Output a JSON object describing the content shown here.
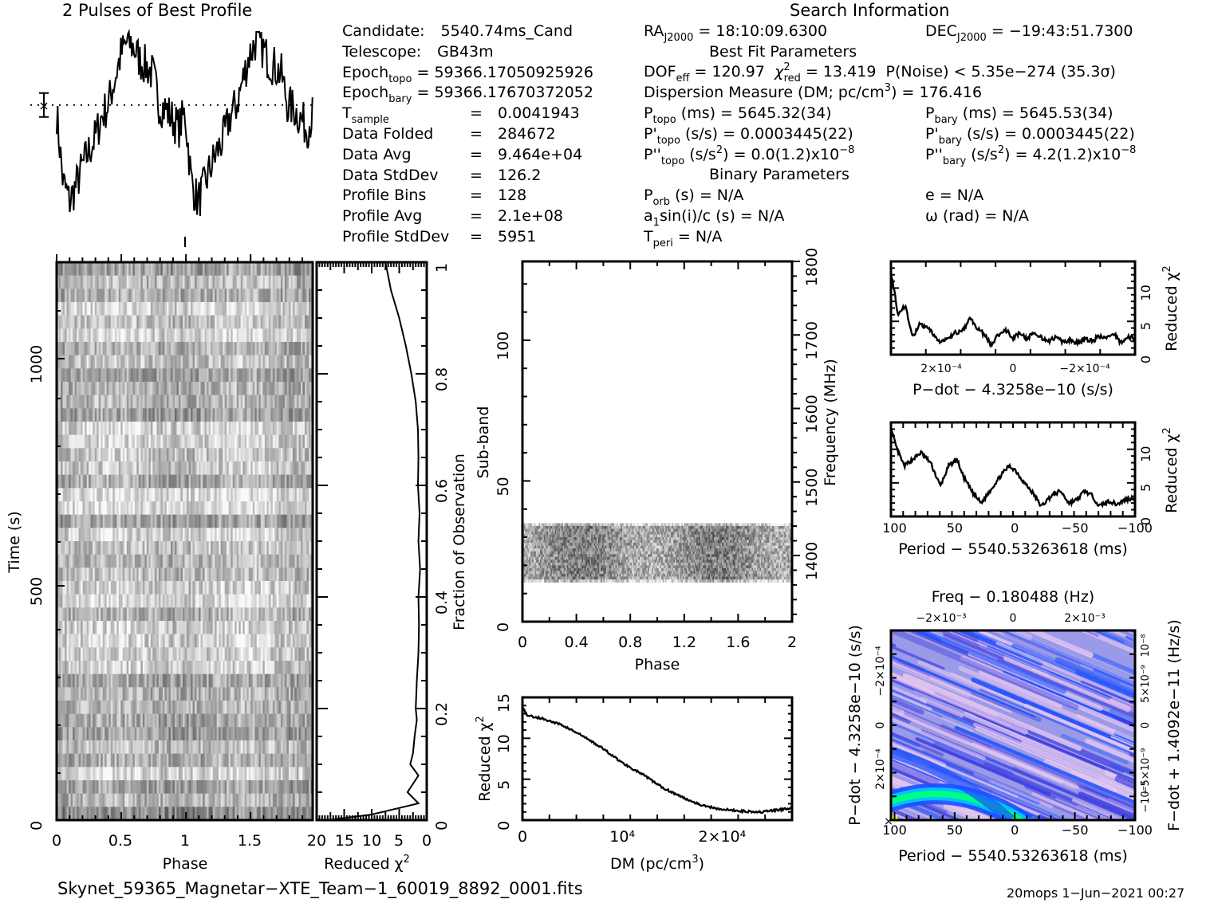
{
  "header": {
    "profile_title": "2 Pulses of Best Profile",
    "search_title": "Search Information"
  },
  "info_left": [
    {
      "label": "Candidate:",
      "sub": "",
      "value": "5540.74ms_Cand"
    },
    {
      "label": "Telescope:",
      "sub": "",
      "value": "GB43m"
    },
    {
      "label": "Epoch",
      "sub": "topo",
      "value": "= 59366.17050925926"
    },
    {
      "label": "Epoch",
      "sub": "bary",
      "value": "= 59366.17670372052"
    },
    {
      "label": "T",
      "sub": "sample",
      "value": "0.0041943"
    },
    {
      "label": "Data Folded",
      "sub": "",
      "value": "284672"
    },
    {
      "label": "Data Avg",
      "sub": "",
      "value": "9.464e+04"
    },
    {
      "label": "Data StdDev",
      "sub": "",
      "value": "126.2"
    },
    {
      "label": "Profile Bins",
      "sub": "",
      "value": "128"
    },
    {
      "label": "Profile Avg",
      "sub": "",
      "value": "2.1e+08"
    },
    {
      "label": "Profile StdDev",
      "sub": "",
      "value": "5951"
    }
  ],
  "search_info": {
    "ra": "= 18:10:09.6300",
    "dec": "= −19:43:51.7300",
    "best_fit_heading": "Best Fit Parameters",
    "dof_eff": "= 120.97",
    "chi2_red": "= 13.419",
    "p_noise": "P(Noise) < 5.35e−274   (35.3σ)",
    "dm_label": "Dispersion Measure (DM; pc/cm",
    "dm_value": ") = 176.416",
    "p_topo": "(ms) =  5645.32(34)",
    "p_bary": "(ms) =  5645.53(34)",
    "pd_topo": "(s/s) =  0.0003445(22)",
    "pd_bary": "(s/s) =  0.0003445(22)",
    "pdd_topo": "= 0.0(1.2)x10",
    "pdd_bary": "=  4.2(1.2)x10",
    "pdd_exp": "−8",
    "binary_heading": "Binary Parameters",
    "p_orb": "(s) = N/A",
    "e": "e = N/A",
    "a1sini": "sin(i)/c (s) = N/A",
    "omega": "ω (rad) = N/A",
    "t_peri": "= N/A"
  },
  "footer": {
    "filename": "Skynet_59365_Magnetar−XTE_Team−1_60019_8892_0001.fits",
    "stamp": "20mops   1−Jun−2021 00:27"
  },
  "chart_data": [
    {
      "id": "profile",
      "type": "line",
      "title": "2 Pulses of Best Profile",
      "xlabel": "",
      "ylabel": "",
      "xlim": [
        0,
        2
      ],
      "x_phase": [
        0.0,
        0.05,
        0.1,
        0.15,
        0.2,
        0.25,
        0.3,
        0.35,
        0.4,
        0.45,
        0.5,
        0.55,
        0.6,
        0.65,
        0.7,
        0.75,
        0.8,
        0.85,
        0.9,
        0.95,
        1.0
      ],
      "values_norm": [
        0.58,
        0.22,
        0.12,
        0.2,
        0.3,
        0.38,
        0.45,
        0.56,
        0.62,
        0.75,
        0.88,
        0.95,
        0.92,
        0.85,
        0.82,
        0.78,
        0.62,
        0.6,
        0.55,
        0.5,
        0.58
      ],
      "mean_line_norm": 0.6,
      "pulses": 2
    },
    {
      "id": "time-phase",
      "type": "heatmap",
      "xlabel": "Phase",
      "ylabel": "Time (s)",
      "xlim": [
        0,
        2
      ],
      "ylim": [
        0,
        1189
      ],
      "xticks": [
        "0",
        "0.5",
        "1",
        "1.5"
      ],
      "yticks": [
        "0",
        "500",
        "1000"
      ],
      "colormap": "grayscale"
    },
    {
      "id": "chi2-vs-fraction",
      "type": "line",
      "xlabel": "Reduced χ²",
      "ylabel": "Fraction of Observation",
      "xlim": [
        20,
        0
      ],
      "ylim": [
        0,
        1
      ],
      "xticks": [
        "20",
        "15",
        "10",
        "5",
        "0"
      ],
      "yticks": [
        "0",
        "0.2",
        "0.4",
        "0.6",
        "0.8",
        "1"
      ],
      "fraction": [
        0.0,
        0.01,
        0.03,
        0.05,
        0.08,
        0.1,
        0.12,
        0.15,
        0.18,
        0.2,
        0.25,
        0.3,
        0.35,
        0.4,
        0.45,
        0.5,
        0.55,
        0.6,
        0.65,
        0.7,
        0.75,
        0.8,
        0.85,
        0.9,
        0.95,
        1.0
      ],
      "chi2": [
        18,
        10,
        1.5,
        3.5,
        1.5,
        3.0,
        2.5,
        2.2,
        1.8,
        2.0,
        1.8,
        1.5,
        1.4,
        1.5,
        1.2,
        1.5,
        1.3,
        1.6,
        1.5,
        1.6,
        2.0,
        2.8,
        3.8,
        5.0,
        6.5,
        7.5
      ]
    },
    {
      "id": "subband-phase",
      "type": "heatmap",
      "xlabel": "Phase",
      "ylabel": "Sub-band",
      "y2label": "Frequency (MHz)",
      "xlim": [
        0,
        2
      ],
      "ylim": [
        0,
        128
      ],
      "y2lim": [
        1310,
        1800
      ],
      "xticks": [
        "0",
        "0.4",
        "0.8",
        "1.2",
        "1.6",
        "2"
      ],
      "yticks": [
        "0",
        "50",
        "100"
      ],
      "y2ticks": [
        "1400",
        "1500",
        "1600",
        "1700",
        "1800"
      ],
      "data_band": [
        14,
        35
      ],
      "colormap": "grayscale"
    },
    {
      "id": "dm-chi2",
      "type": "line",
      "xlabel": "DM (pc/cm³)",
      "ylabel": "Reduced χ²",
      "xlim": [
        0,
        27000
      ],
      "ylim": [
        0,
        15
      ],
      "xticks": [
        "0",
        "10⁴",
        "2×10⁴"
      ],
      "yticks": [
        "0",
        "5",
        "10",
        "15"
      ],
      "x": [
        0,
        500,
        2000,
        4000,
        6000,
        8000,
        10000,
        12000,
        14000,
        16000,
        18000,
        20000,
        22000,
        24000,
        26000,
        27000
      ],
      "y": [
        13.8,
        12.8,
        12.4,
        11.6,
        10.3,
        8.8,
        7.0,
        5.6,
        4.0,
        2.8,
        1.8,
        1.3,
        1.1,
        1.0,
        1.3,
        1.5
      ]
    },
    {
      "id": "pdot-chi2",
      "type": "line",
      "xlabel": "P−dot − 4.3258e−10 (s/s)",
      "ylabel": "Reduced χ²",
      "xlim": [
        0.00034,
        -0.00034
      ],
      "ylim": [
        0,
        14
      ],
      "xticks": [
        "2×10⁻⁴",
        "0",
        "−2×10⁻⁴"
      ],
      "yticks": [
        "0",
        "5",
        "10"
      ],
      "x": [
        0.00034,
        0.00032,
        0.0003,
        0.00028,
        0.00026,
        0.00024,
        0.00022,
        0.0002,
        0.00018,
        0.00016,
        0.00014,
        0.00012,
        0.0001,
        8e-05,
        6e-05,
        4e-05,
        2e-05,
        0,
        -2e-05,
        -4e-05,
        -6e-05,
        -8e-05,
        -0.0001,
        -0.00012,
        -0.00014,
        -0.00016,
        -0.00018,
        -0.0002,
        -0.00022,
        -0.00024,
        -0.00026,
        -0.00028,
        -0.0003,
        -0.00032,
        -0.00034
      ],
      "y": [
        12.5,
        6,
        7.5,
        2.5,
        4.5,
        4,
        3,
        1.8,
        2.5,
        3.3,
        3.5,
        5.5,
        4,
        3,
        1.5,
        3,
        3.8,
        2.5,
        3.3,
        2.3,
        3.5,
        2.5,
        2,
        2.6,
        1.8,
        2.2,
        1.8,
        2.3,
        2,
        2.8,
        2.3,
        3.2,
        1.8,
        2.6,
        2.4
      ]
    },
    {
      "id": "period-chi2",
      "type": "line",
      "xlabel": "Period − 5540.53263618 (ms)",
      "ylabel": "Reduced χ²",
      "xlim": [
        103,
        -100
      ],
      "ylim": [
        0,
        14
      ],
      "xticks": [
        "100",
        "50",
        "0",
        "−50",
        "−100"
      ],
      "yticks": [
        "0",
        "5",
        "10"
      ],
      "x": [
        103,
        98,
        92,
        85,
        78,
        70,
        62,
        55,
        48,
        43,
        35,
        28,
        20,
        12,
        5,
        0,
        -8,
        -15,
        -22,
        -30,
        -38,
        -45,
        -52,
        -58,
        -65,
        -70,
        -78,
        -85,
        -92,
        -100
      ],
      "y": [
        13,
        10,
        7.5,
        8.5,
        9.5,
        8,
        4.5,
        7.5,
        8.5,
        6,
        3.5,
        2,
        4,
        6,
        7.5,
        7,
        5,
        3.5,
        1.5,
        3,
        3.8,
        2,
        2.5,
        3.8,
        3,
        1.5,
        2.3,
        1.8,
        2.5,
        2.8
      ]
    },
    {
      "id": "period-pdot",
      "type": "heatmap",
      "title": "Freq − 0.180488 (Hz)",
      "xlabel": "Period − 5540.53263618 (ms)",
      "ylabel": "P−dot − 4.3258e−10 (s/s)",
      "y2label": "F−dot + 1.4092e−11 (Hz/s)",
      "xlim": [
        103,
        -100
      ],
      "ylim": [
        0.00034,
        -0.00034
      ],
      "xticks": [
        "100",
        "50",
        "0",
        "−50",
        "−100"
      ],
      "x2ticks": [
        "−2×10⁻³",
        "0",
        "2×10⁻³"
      ],
      "yticks": [
        "2×10⁻⁴",
        "0",
        "−2×10⁻⁴"
      ],
      "y2ticks": [
        "−10⁻⁸",
        "−5×10⁻⁹",
        "0",
        "5×10⁻⁹",
        "10⁻⁸"
      ],
      "colormap": [
        "#e8c8f0",
        "#9a9ae8",
        "#3a3ae0",
        "#1a50ff",
        "#00c8ff",
        "#00ff80",
        "#ffff00"
      ]
    }
  ],
  "colors": {
    "axis": "#000000",
    "heat_bg": "#ffffff"
  }
}
